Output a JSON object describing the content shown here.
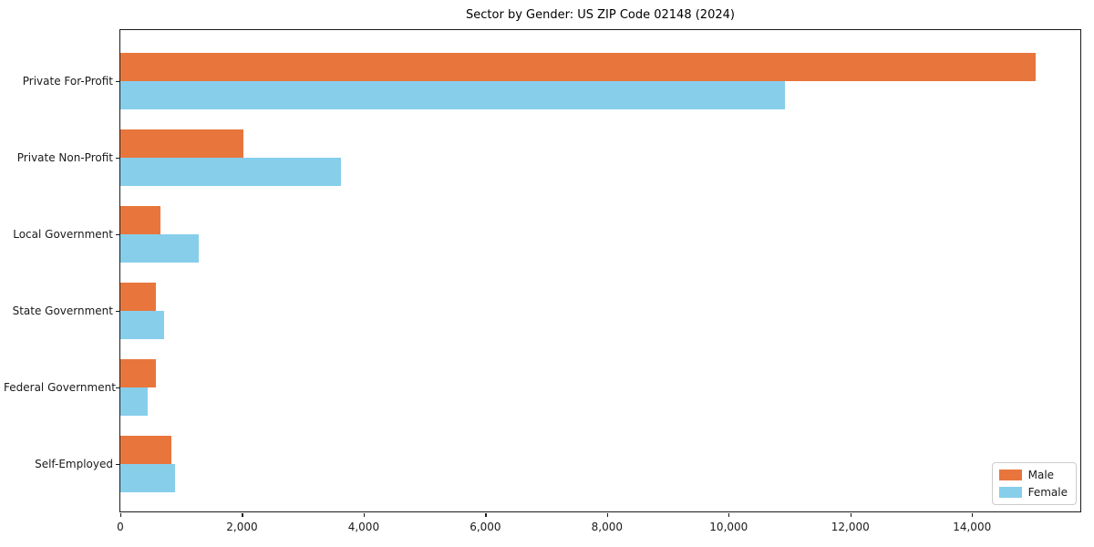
{
  "chart_data": {
    "type": "bar",
    "orientation": "horizontal",
    "title": "Sector by Gender: US ZIP Code 02148 (2024)",
    "categories": [
      "Private For-Profit",
      "Private Non-Profit",
      "Local Government",
      "State Government",
      "Federal Government",
      "Self-Employed"
    ],
    "series": [
      {
        "name": "Male",
        "color": "#E8763C",
        "values": [
          15050,
          2030,
          660,
          580,
          590,
          840
        ]
      },
      {
        "name": "Female",
        "color": "#87CEEB",
        "values": [
          10930,
          3620,
          1290,
          720,
          450,
          900
        ]
      }
    ],
    "xlabel": "",
    "ylabel": "",
    "xlim": [
      0,
      15810
    ],
    "xticks": [
      0,
      2000,
      4000,
      6000,
      8000,
      10000,
      12000,
      14000
    ],
    "xticklabels": [
      "0",
      "2,000",
      "4,000",
      "6,000",
      "8,000",
      "10,000",
      "12,000",
      "14,000"
    ],
    "grid": false,
    "legend": {
      "position": "lower right"
    }
  }
}
